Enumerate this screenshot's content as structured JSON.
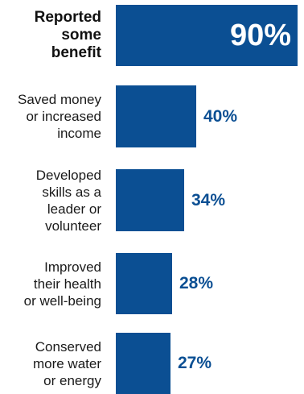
{
  "chart_data": {
    "type": "bar",
    "orientation": "horizontal",
    "categories": [
      "Reported\nsome\nbenefit",
      "Saved money\nor increased\nincome",
      "Developed\nskills as a\nleader or\nvolunteer",
      "Improved\ntheir health\nor well-being",
      "Conserved\nmore water\nor energy"
    ],
    "values": [
      90,
      40,
      34,
      28,
      27
    ],
    "value_labels": [
      "90%",
      "40%",
      "34%",
      "28%",
      "27%"
    ],
    "xlim": [
      0,
      90
    ],
    "title": "",
    "xlabel": "",
    "ylabel": "",
    "grid": false,
    "bar_color": "#0b4f93"
  }
}
